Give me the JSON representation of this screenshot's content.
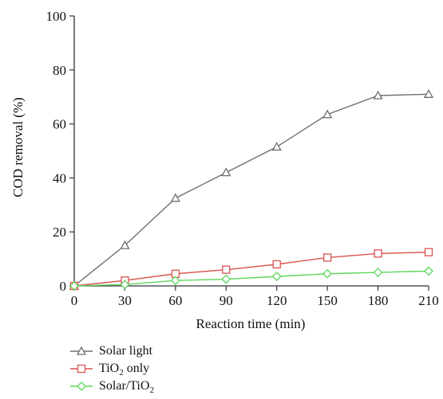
{
  "chart_data": {
    "type": "line",
    "title": "",
    "xlabel": "Reaction time (min)",
    "ylabel": "COD removal (%)",
    "x": [
      0,
      30,
      60,
      90,
      120,
      150,
      180,
      210
    ],
    "xlim": [
      0,
      210
    ],
    "ylim": [
      0,
      100
    ],
    "xticks": [
      0,
      30,
      60,
      90,
      120,
      150,
      180,
      210
    ],
    "yticks": [
      0,
      20,
      40,
      60,
      80,
      100
    ],
    "grid": false,
    "legend_position": "bottom-left",
    "series": [
      {
        "name": "Solar light",
        "label_main": "Solar light",
        "label_sub": "",
        "label_tail": "",
        "marker": "triangle",
        "color": "#6e6e6e",
        "values": [
          0,
          15,
          32.5,
          42,
          51.5,
          63.5,
          70.5,
          71
        ]
      },
      {
        "name": "TiO2 only",
        "label_main": "TiO",
        "label_sub": "2",
        "label_tail": " only",
        "marker": "square",
        "color": "#d9534f",
        "values": [
          0,
          2,
          4.5,
          6,
          8,
          10.5,
          12,
          12.5
        ]
      },
      {
        "name": "Solar/TiO2",
        "label_main": "Solar/TiO",
        "label_sub": "2",
        "label_tail": "",
        "marker": "diamond",
        "color": "#5cd65c",
        "values": [
          0,
          0.5,
          2,
          2.5,
          3.5,
          4.5,
          5,
          5.5
        ]
      }
    ]
  }
}
